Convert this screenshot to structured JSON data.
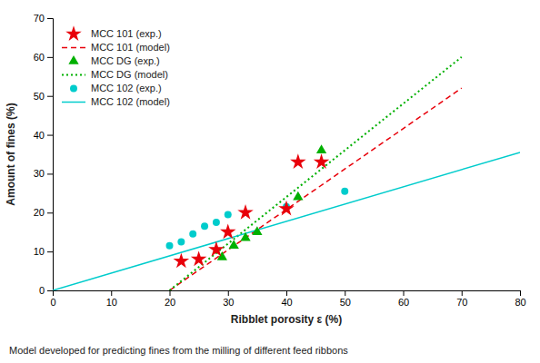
{
  "chart_data": {
    "type": "scatter",
    "xlabel": "Ribblet porosity ε (%)",
    "ylabel": "Amount of fines (%)",
    "caption": "Model developed for predicting fines from the milling of different feed ribbons",
    "xlim": [
      0,
      80
    ],
    "ylim": [
      0,
      70
    ],
    "xticks": [
      0,
      10,
      20,
      30,
      40,
      50,
      60,
      70,
      80
    ],
    "yticks": [
      0,
      10,
      20,
      30,
      40,
      50,
      60,
      70
    ],
    "grid": false,
    "legend": "upper left",
    "series": [
      {
        "name": "MCC 101 (exp.)",
        "type": "scatter",
        "marker": "star",
        "color": "#e8000a",
        "x": [
          22,
          25,
          28,
          30,
          33,
          40,
          42,
          46
        ],
        "values": [
          7.5,
          8.0,
          10.5,
          15.0,
          20.0,
          21.0,
          33.0,
          33.0
        ]
      },
      {
        "name": "MCC 101 (model)",
        "type": "line",
        "line_style": "dashed",
        "color": "#e8000a",
        "x": [
          20,
          70
        ],
        "values": [
          0.0,
          52.0
        ]
      },
      {
        "name": "MCC DG (exp.)",
        "type": "scatter",
        "marker": "triangle",
        "color": "#00b000",
        "x": [
          29,
          31,
          33,
          35,
          42,
          46
        ],
        "values": [
          8.5,
          11.5,
          13.5,
          15.0,
          24.0,
          36.0
        ]
      },
      {
        "name": "MCC DG (model)",
        "type": "line",
        "line_style": "dotted",
        "color": "#00b000",
        "x": [
          20,
          70
        ],
        "values": [
          0.0,
          60.0
        ]
      },
      {
        "name": "MCC 102 (exp.)",
        "type": "scatter",
        "marker": "circle",
        "color": "#00cccc",
        "x": [
          20,
          22,
          24,
          26,
          28,
          30,
          40,
          50
        ],
        "values": [
          11.5,
          12.5,
          14.5,
          16.5,
          17.5,
          19.5,
          21.5,
          25.5
        ]
      },
      {
        "name": "MCC 102 (model)",
        "type": "line",
        "line_style": "solid",
        "color": "#00cccc",
        "x": [
          0,
          80
        ],
        "values": [
          0.0,
          35.5
        ]
      }
    ]
  }
}
